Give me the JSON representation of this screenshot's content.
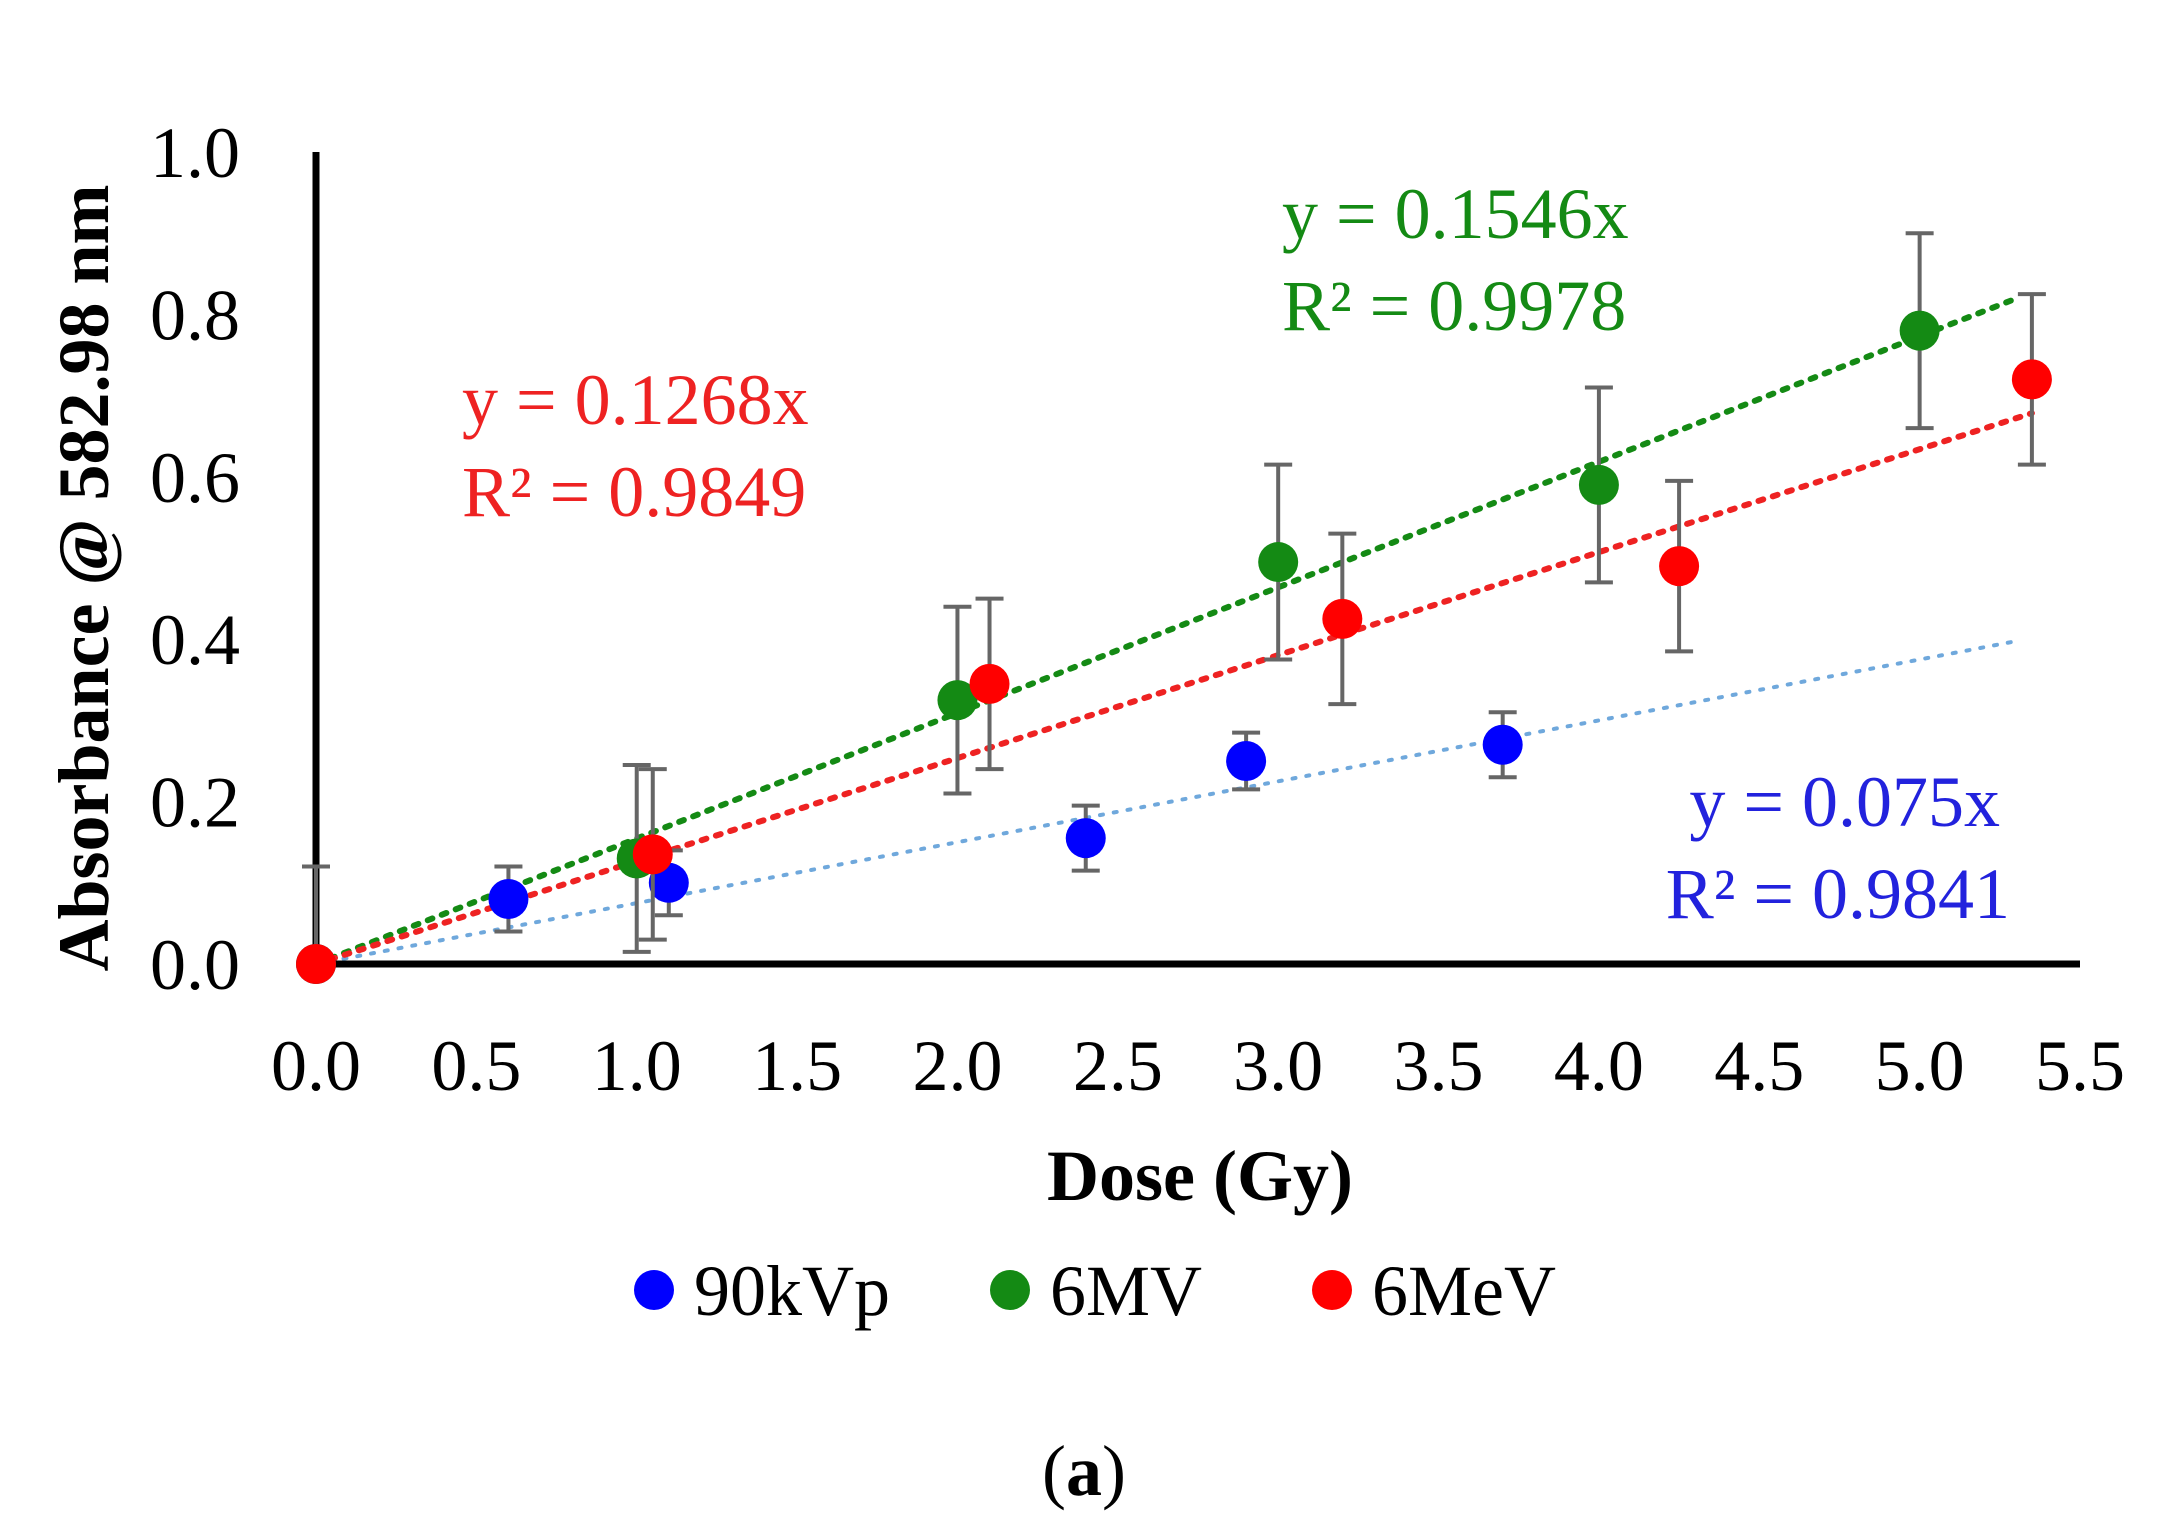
{
  "chart_data": {
    "type": "scatter",
    "xlabel": "Dose (Gy)",
    "ylabel": "Absorbance @ 582.98 nm",
    "xlim": [
      0,
      5.5
    ],
    "ylim": [
      0,
      1.0
    ],
    "xticks": [
      "0.0",
      "0.5",
      "1.0",
      "1.5",
      "2.0",
      "2.5",
      "3.0",
      "3.5",
      "4.0",
      "4.5",
      "5.0",
      "5.5"
    ],
    "yticks": [
      "0.0",
      "0.2",
      "0.4",
      "0.6",
      "0.8",
      "1.0"
    ],
    "grid": false,
    "legend_position": "bottom",
    "panel_label_open": "(",
    "panel_label_letter": "a",
    "panel_label_close": ")",
    "series": [
      {
        "name": "90kVp",
        "color": "#0000ff",
        "trend_color": "#6fa8dc",
        "x": [
          0.0,
          0.6,
          1.1,
          2.4,
          2.9,
          3.7
        ],
        "y": [
          0.0,
          0.08,
          0.1,
          0.155,
          0.25,
          0.27
        ],
        "err": [
          0.12,
          0.04,
          0.04,
          0.04,
          0.035,
          0.04
        ],
        "trend": {
          "slope": 0.075,
          "x_end": 5.3
        },
        "equation": "y = 0.075x",
        "r2": "R² = 0.9841"
      },
      {
        "name": "6MV",
        "color": "#148a14",
        "trend_color": "#148a14",
        "x": [
          0.0,
          1.0,
          2.0,
          3.0,
          4.0,
          5.0
        ],
        "y": [
          0.0,
          0.13,
          0.325,
          0.495,
          0.59,
          0.78
        ],
        "err": [
          0.12,
          0.115,
          0.115,
          0.12,
          0.12,
          0.12
        ],
        "trend": {
          "slope": 0.1546,
          "x_end": 5.3
        },
        "equation": "y = 0.1546x",
        "r2": "R² = 0.9978"
      },
      {
        "name": "6MeV",
        "color": "#ff0000",
        "trend_color": "#ee2222",
        "x": [
          0.0,
          1.05,
          2.1,
          3.2,
          4.25,
          5.35
        ],
        "y": [
          0.0,
          0.135,
          0.345,
          0.425,
          0.49,
          0.72
        ],
        "err": [
          0.12,
          0.105,
          0.105,
          0.105,
          0.105,
          0.105
        ],
        "trend": {
          "slope": 0.1268,
          "x_end": 5.35
        },
        "equation": "y = 0.1268x",
        "r2": "R² = 0.9849"
      }
    ]
  }
}
